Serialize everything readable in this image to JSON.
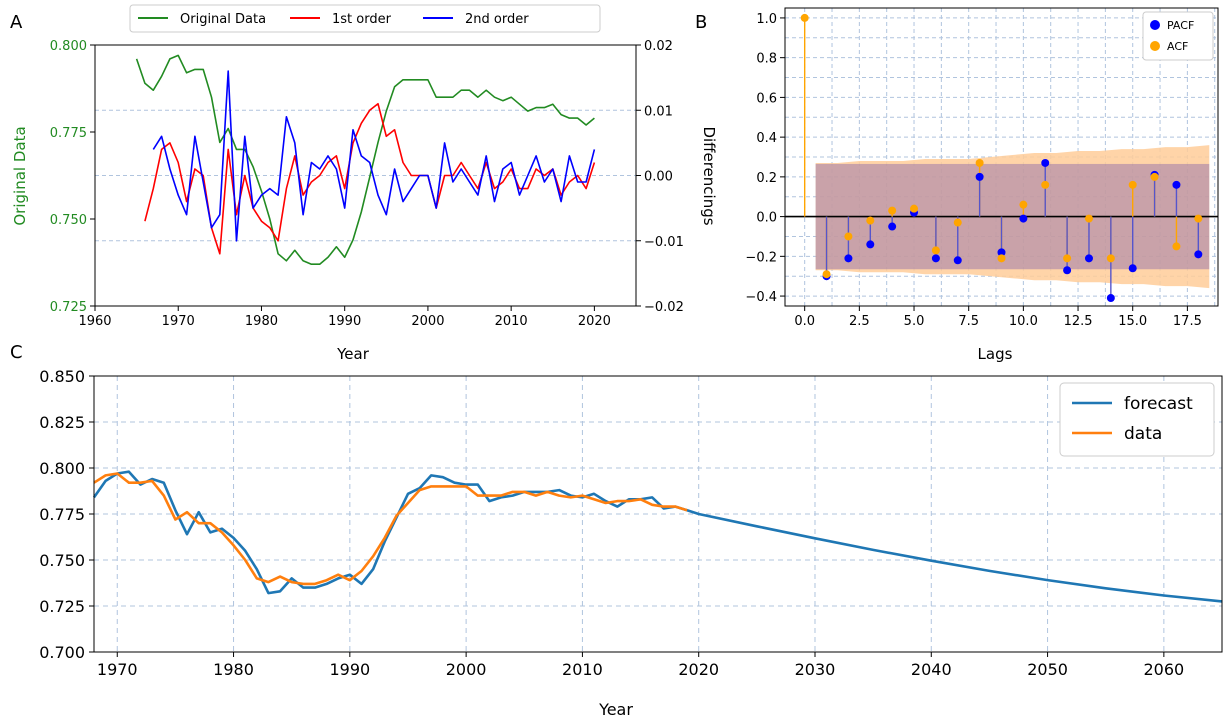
{
  "colors": {
    "original": "#228B22",
    "first": "#ff0000",
    "second": "#0000ff",
    "pacf": "#0000ff",
    "acf": "#ffa500",
    "forecast": "#1f77b4",
    "data": "#ff7f0e",
    "grid": "#b0c4de",
    "conf_band": "#ffcc99",
    "conf_band2": "#8866aa"
  },
  "panel_labels": {
    "a": "A",
    "b": "B",
    "c": "C"
  },
  "chart_data": [
    {
      "id": "A",
      "type": "line",
      "xlabel": "Year",
      "ylabel_left": "Original Data",
      "ylabel_right": "Differencings",
      "xlim": [
        1960,
        2025
      ],
      "ylim_left": [
        0.725,
        0.8
      ],
      "ylim_right": [
        -0.02,
        0.02
      ],
      "x_ticks": [
        1960,
        1970,
        1980,
        1990,
        2000,
        2010,
        2020
      ],
      "y_ticks_left": [
        0.725,
        0.75,
        0.775,
        0.8
      ],
      "y_tick_labels_left": [
        "0.725",
        "0.750",
        "0.775",
        "0.800"
      ],
      "y_ticks_right": [
        -0.02,
        -0.01,
        0.0,
        0.01,
        0.02
      ],
      "y_tick_labels_right": [
        "−0.02",
        "−0.01",
        "0.00",
        "0.01",
        "0.02"
      ],
      "grid": "horizontal dashed at right-axis ticks",
      "legend": {
        "placement": "top-center",
        "entries": [
          "Original Data",
          "1st order",
          "2nd order"
        ]
      },
      "series": [
        {
          "name": "Original Data",
          "axis": "left",
          "x": [
            1965,
            1966,
            1967,
            1968,
            1969,
            1970,
            1971,
            1972,
            1973,
            1974,
            1975,
            1976,
            1977,
            1978,
            1979,
            1980,
            1981,
            1982,
            1983,
            1984,
            1985,
            1986,
            1987,
            1988,
            1989,
            1990,
            1991,
            1992,
            1993,
            1994,
            1995,
            1996,
            1997,
            1998,
            1999,
            2000,
            2001,
            2002,
            2003,
            2004,
            2005,
            2006,
            2007,
            2008,
            2009,
            2010,
            2011,
            2012,
            2013,
            2014,
            2015,
            2016,
            2017,
            2018,
            2019,
            2020
          ],
          "values": [
            0.796,
            0.789,
            0.787,
            0.791,
            0.796,
            0.797,
            0.792,
            0.793,
            0.793,
            0.785,
            0.772,
            0.776,
            0.77,
            0.77,
            0.765,
            0.758,
            0.75,
            0.74,
            0.738,
            0.741,
            0.738,
            0.737,
            0.737,
            0.739,
            0.742,
            0.739,
            0.744,
            0.752,
            0.762,
            0.772,
            0.781,
            0.788,
            0.79,
            0.79,
            0.79,
            0.79,
            0.785,
            0.785,
            0.785,
            0.787,
            0.787,
            0.785,
            0.787,
            0.785,
            0.784,
            0.785,
            0.783,
            0.781,
            0.782,
            0.782,
            0.783,
            0.78,
            0.779,
            0.779,
            0.777,
            0.779
          ]
        },
        {
          "name": "1st order",
          "axis": "right",
          "x": [
            1966,
            1967,
            1968,
            1969,
            1970,
            1971,
            1972,
            1973,
            1974,
            1975,
            1976,
            1977,
            1978,
            1979,
            1980,
            1981,
            1982,
            1983,
            1984,
            1985,
            1986,
            1987,
            1988,
            1989,
            1990,
            1991,
            1992,
            1993,
            1994,
            1995,
            1996,
            1997,
            1998,
            1999,
            2000,
            2001,
            2002,
            2003,
            2004,
            2005,
            2006,
            2007,
            2008,
            2009,
            2010,
            2011,
            2012,
            2013,
            2014,
            2015,
            2016,
            2017,
            2018,
            2019,
            2020
          ],
          "values": [
            -0.007,
            -0.002,
            0.004,
            0.005,
            0.002,
            -0.004,
            0.001,
            0.0,
            -0.008,
            -0.012,
            0.004,
            -0.006,
            0.0,
            -0.005,
            -0.007,
            -0.008,
            -0.01,
            -0.002,
            0.003,
            -0.003,
            -0.001,
            0.0,
            0.002,
            0.003,
            -0.002,
            0.005,
            0.008,
            0.01,
            0.011,
            0.006,
            0.007,
            0.002,
            0.0,
            0.0,
            0.0,
            -0.005,
            0.0,
            0.0,
            0.002,
            0.0,
            -0.002,
            0.002,
            -0.002,
            -0.001,
            0.001,
            -0.002,
            -0.002,
            0.001,
            0.0,
            0.001,
            -0.003,
            -0.001,
            0.0,
            -0.002,
            0.002
          ]
        },
        {
          "name": "2nd order",
          "axis": "right",
          "x": [
            1967,
            1968,
            1969,
            1970,
            1971,
            1972,
            1973,
            1974,
            1975,
            1976,
            1977,
            1978,
            1979,
            1980,
            1981,
            1982,
            1983,
            1984,
            1985,
            1986,
            1987,
            1988,
            1989,
            1990,
            1991,
            1992,
            1993,
            1994,
            1995,
            1996,
            1997,
            1998,
            1999,
            2000,
            2001,
            2002,
            2003,
            2004,
            2005,
            2006,
            2007,
            2008,
            2009,
            2010,
            2011,
            2012,
            2013,
            2014,
            2015,
            2016,
            2017,
            2018,
            2019,
            2020
          ],
          "values": [
            0.004,
            0.006,
            0.001,
            -0.003,
            -0.006,
            0.006,
            -0.001,
            -0.008,
            -0.006,
            0.016,
            -0.01,
            0.006,
            -0.005,
            -0.003,
            -0.002,
            -0.003,
            0.009,
            0.005,
            -0.006,
            0.002,
            0.001,
            0.003,
            0.001,
            -0.005,
            0.007,
            0.003,
            0.002,
            -0.003,
            -0.006,
            0.001,
            -0.004,
            -0.002,
            0.0,
            0.0,
            -0.005,
            0.005,
            -0.001,
            0.001,
            -0.001,
            -0.003,
            0.003,
            -0.004,
            0.001,
            0.002,
            -0.003,
            0.0,
            0.003,
            -0.001,
            0.001,
            -0.004,
            0.003,
            -0.001,
            -0.001,
            0.004
          ]
        }
      ]
    },
    {
      "id": "B",
      "type": "scatter",
      "xlabel": "Lags",
      "ylabel": "",
      "xlim": [
        -0.9,
        18.9
      ],
      "ylim": [
        -0.45,
        1.05
      ],
      "x_ticks": [
        0.0,
        2.5,
        5.0,
        7.5,
        10.0,
        12.5,
        15.0,
        17.5
      ],
      "x_tick_labels": [
        "0.0",
        "2.5",
        "5.0",
        "7.5",
        "10.0",
        "12.5",
        "15.0",
        "17.5"
      ],
      "y_ticks": [
        -0.4,
        -0.2,
        0.0,
        0.2,
        0.4,
        0.6,
        0.8,
        1.0
      ],
      "y_tick_labels": [
        "−0.4",
        "−0.2",
        "0.0",
        "0.2",
        "0.4",
        "0.6",
        "0.8",
        "1.0"
      ],
      "grid": true,
      "legend": {
        "placement": "top-right",
        "entries": [
          "PACF",
          "ACF"
        ]
      },
      "acf_conf_upper": [
        0.27,
        0.27,
        0.28,
        0.28,
        0.28,
        0.29,
        0.29,
        0.29,
        0.3,
        0.31,
        0.32,
        0.32,
        0.33,
        0.33,
        0.34,
        0.34,
        0.35,
        0.35,
        0.36
      ],
      "pacf_conf": 0.265,
      "series": [
        {
          "name": "PACF",
          "x": [
            1,
            2,
            3,
            4,
            5,
            6,
            7,
            8,
            9,
            10,
            11,
            12,
            13,
            14,
            15,
            16,
            17,
            18
          ],
          "values": [
            -0.3,
            -0.21,
            -0.14,
            -0.05,
            0.02,
            -0.21,
            -0.22,
            0.2,
            -0.18,
            -0.01,
            0.27,
            -0.27,
            -0.21,
            -0.41,
            -0.26,
            0.21,
            0.16,
            -0.19
          ]
        },
        {
          "name": "ACF",
          "x": [
            0,
            1,
            2,
            3,
            4,
            5,
            6,
            7,
            8,
            9,
            10,
            11,
            12,
            13,
            14,
            15,
            16,
            17,
            18
          ],
          "values": [
            1.0,
            -0.29,
            -0.1,
            -0.02,
            0.03,
            0.04,
            -0.17,
            -0.03,
            0.27,
            -0.21,
            0.06,
            0.16,
            -0.21,
            -0.01,
            -0.21,
            0.16,
            0.2,
            -0.15,
            -0.01
          ]
        }
      ]
    },
    {
      "id": "C",
      "type": "line",
      "xlabel": "Year",
      "ylabel": "",
      "xlim": [
        1968,
        2065
      ],
      "ylim": [
        0.7,
        0.85
      ],
      "x_ticks": [
        1970,
        1980,
        1990,
        2000,
        2010,
        2020,
        2030,
        2040,
        2050,
        2060
      ],
      "y_ticks": [
        0.7,
        0.725,
        0.75,
        0.775,
        0.8,
        0.825,
        0.85
      ],
      "y_tick_labels": [
        "0.700",
        "0.725",
        "0.750",
        "0.775",
        "0.800",
        "0.825",
        "0.850"
      ],
      "grid": true,
      "legend": {
        "placement": "top-right",
        "entries": [
          "forecast",
          "data"
        ]
      },
      "series": [
        {
          "name": "forecast",
          "x": [
            1968,
            1969,
            1970,
            1971,
            1972,
            1973,
            1974,
            1975,
            1976,
            1977,
            1978,
            1979,
            1980,
            1981,
            1982,
            1983,
            1984,
            1985,
            1986,
            1987,
            1988,
            1989,
            1990,
            1991,
            1992,
            1993,
            1994,
            1995,
            1996,
            1997,
            1998,
            1999,
            2000,
            2001,
            2002,
            2003,
            2004,
            2005,
            2006,
            2007,
            2008,
            2009,
            2010,
            2011,
            2012,
            2013,
            2014,
            2015,
            2016,
            2017,
            2018,
            2019,
            2020,
            2025,
            2030,
            2035,
            2040,
            2045,
            2050,
            2055,
            2060,
            2065
          ],
          "values": [
            0.784,
            0.793,
            0.797,
            0.798,
            0.791,
            0.794,
            0.792,
            0.777,
            0.764,
            0.776,
            0.765,
            0.767,
            0.762,
            0.755,
            0.745,
            0.732,
            0.733,
            0.74,
            0.735,
            0.735,
            0.737,
            0.74,
            0.742,
            0.737,
            0.745,
            0.76,
            0.773,
            0.786,
            0.789,
            0.796,
            0.795,
            0.792,
            0.791,
            0.791,
            0.782,
            0.784,
            0.785,
            0.787,
            0.787,
            0.787,
            0.788,
            0.785,
            0.784,
            0.786,
            0.782,
            0.779,
            0.783,
            0.783,
            0.784,
            0.778,
            0.779,
            0.777,
            0.775,
            0.7683,
            0.7618,
            0.7555,
            0.7496,
            0.7441,
            0.7391,
            0.7346,
            0.7307,
            0.7275
          ]
        },
        {
          "name": "data",
          "x": [
            1968,
            1969,
            1970,
            1971,
            1972,
            1973,
            1974,
            1975,
            1976,
            1977,
            1978,
            1979,
            1980,
            1981,
            1982,
            1983,
            1984,
            1985,
            1986,
            1987,
            1988,
            1989,
            1990,
            1991,
            1992,
            1993,
            1994,
            1995,
            1996,
            1997,
            1998,
            1999,
            2000,
            2001,
            2002,
            2003,
            2004,
            2005,
            2006,
            2007,
            2008,
            2009,
            2010,
            2011,
            2012,
            2013,
            2014,
            2015,
            2016,
            2017,
            2018,
            2019
          ],
          "values": [
            0.792,
            0.796,
            0.797,
            0.792,
            0.792,
            0.793,
            0.785,
            0.772,
            0.776,
            0.77,
            0.77,
            0.765,
            0.758,
            0.75,
            0.74,
            0.738,
            0.741,
            0.738,
            0.737,
            0.737,
            0.739,
            0.742,
            0.739,
            0.744,
            0.752,
            0.762,
            0.774,
            0.781,
            0.788,
            0.79,
            0.79,
            0.79,
            0.79,
            0.785,
            0.785,
            0.785,
            0.787,
            0.787,
            0.785,
            0.787,
            0.785,
            0.784,
            0.785,
            0.783,
            0.781,
            0.782,
            0.782,
            0.783,
            0.78,
            0.779,
            0.779,
            0.777
          ]
        }
      ]
    }
  ]
}
